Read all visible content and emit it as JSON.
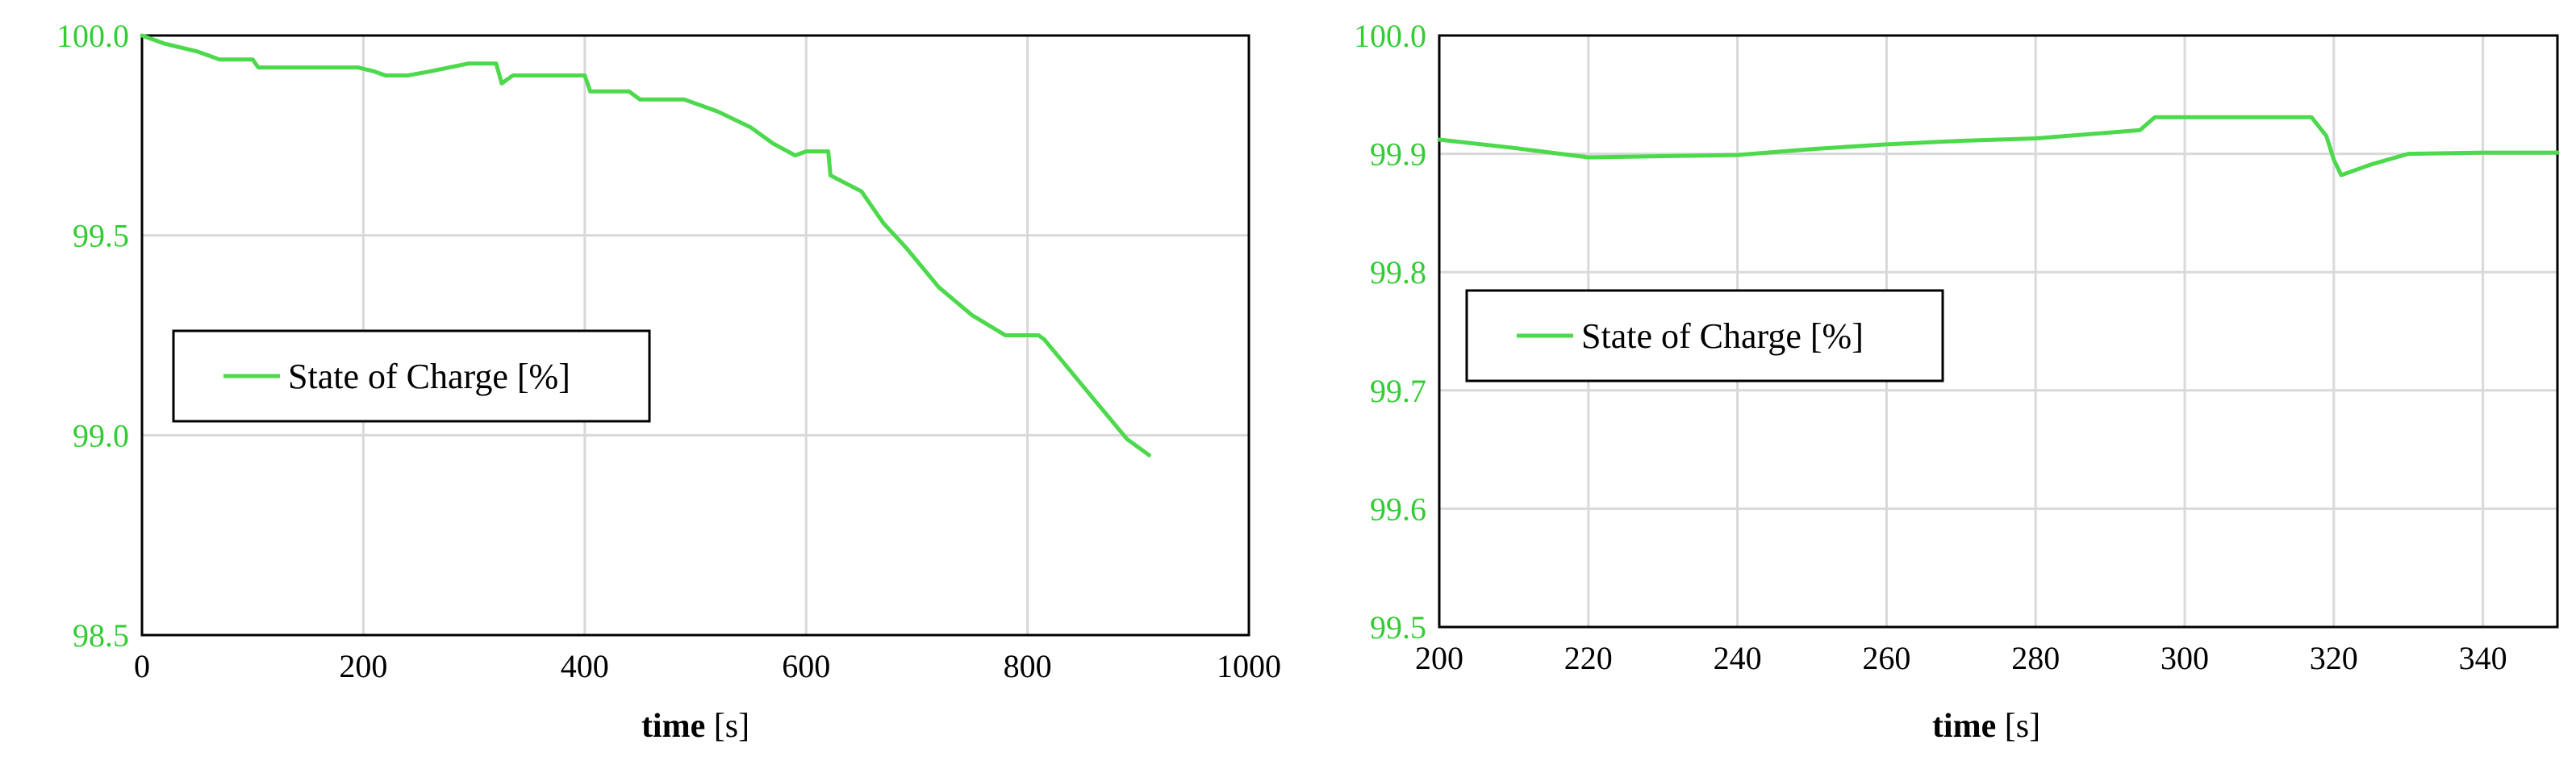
{
  "chart_data": [
    {
      "type": "line",
      "xlabel": "time [s]",
      "xlabel_main": "time",
      "xlabel_unit": "[s]",
      "ylabel": "",
      "xlim": [
        0,
        1000
      ],
      "ylim": [
        98.5,
        100.0
      ],
      "x_ticks": [
        "0",
        "200",
        "400",
        "600",
        "800",
        "1000"
      ],
      "y_ticks": [
        "98.5",
        "99.0",
        "99.5",
        "100.0"
      ],
      "grid": true,
      "legend": "middle-left",
      "series": [
        {
          "name": "State of Charge [%]",
          "color": "#4cd94c",
          "x": [
            0,
            20,
            50,
            70,
            100,
            105,
            115,
            150,
            195,
            210,
            220,
            240,
            260,
            295,
            320,
            325,
            335,
            370,
            400,
            405,
            440,
            450,
            470,
            490,
            520,
            550,
            570,
            590,
            600,
            620,
            622,
            650,
            670,
            690,
            720,
            750,
            780,
            810,
            815,
            830,
            860,
            890,
            910
          ],
          "values": [
            100.0,
            99.98,
            99.96,
            99.94,
            99.94,
            99.92,
            99.92,
            99.92,
            99.92,
            99.91,
            99.9,
            99.9,
            99.91,
            99.93,
            99.93,
            99.88,
            99.9,
            99.9,
            99.9,
            99.86,
            99.86,
            99.84,
            99.84,
            99.84,
            99.81,
            99.77,
            99.73,
            99.7,
            99.71,
            99.71,
            99.65,
            99.61,
            99.53,
            99.47,
            99.37,
            99.3,
            99.25,
            99.25,
            99.24,
            99.19,
            99.09,
            98.99,
            98.95
          ]
        }
      ]
    },
    {
      "type": "line",
      "xlabel": "time [s]",
      "xlabel_main": "time",
      "xlabel_unit": "[s]",
      "ylabel": "",
      "xlim": [
        200,
        350
      ],
      "ylim": [
        99.5,
        100.0
      ],
      "x_ticks": [
        "200",
        "220",
        "240",
        "260",
        "280",
        "300",
        "320",
        "340"
      ],
      "y_ticks": [
        "99.5",
        "99.6",
        "99.7",
        "99.8",
        "99.9",
        "100.0"
      ],
      "grid": true,
      "legend": "middle-left",
      "series": [
        {
          "name": "State of Charge [%]",
          "color": "#4cd94c",
          "x": [
            200,
            210,
            220,
            230,
            240,
            250,
            260,
            270,
            280,
            290,
            294,
            296,
            300,
            310,
            317,
            319,
            320,
            321,
            325,
            330,
            340,
            350
          ],
          "values": [
            99.912,
            99.905,
            99.897,
            99.898,
            99.899,
            99.904,
            99.908,
            99.911,
            99.913,
            99.918,
            99.92,
            99.931,
            99.931,
            99.931,
            99.931,
            99.915,
            99.895,
            99.882,
            99.891,
            99.9,
            99.901,
            99.901
          ]
        }
      ]
    }
  ]
}
